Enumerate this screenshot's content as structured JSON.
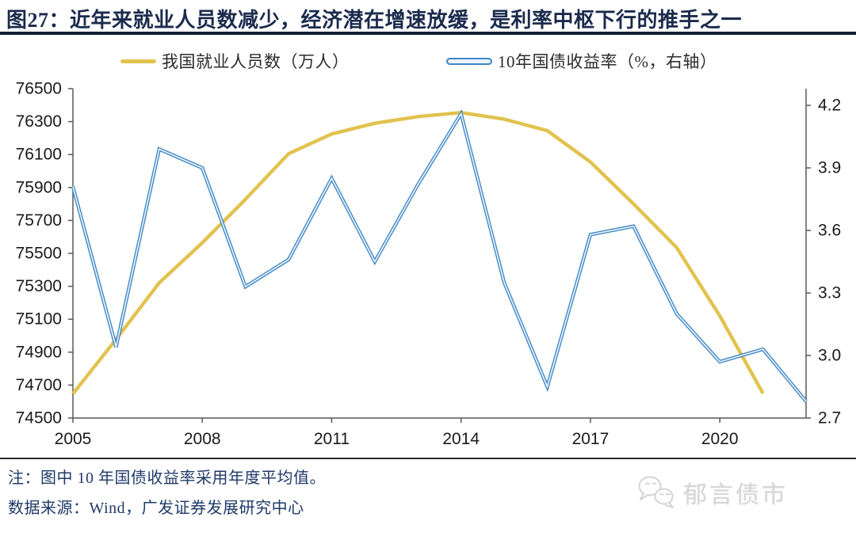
{
  "figure": {
    "title": "图27：近年来就业人员数减少，经济潜在增速放缓，是利率中枢下行的推手之一",
    "note": "注：图中 10 年国债收益率采用年度平均值。",
    "source": "数据来源：Wind，广发证券发展研究中心",
    "watermark": "郁言债市"
  },
  "legend": {
    "items": [
      {
        "label": "我国就业人员数（万人）",
        "color": "#e2c24e",
        "style": "solid"
      },
      {
        "label": "10年国债收益率（%，右轴）",
        "color": "#3f86c2",
        "style": "outlined"
      }
    ]
  },
  "colors": {
    "employment_line": "#e2c24e",
    "yield_line": "#3f86c2",
    "yield_line_core": "#eaf3fb",
    "title_text": "#1b2b4d",
    "title_rule": "#141e33",
    "note_text": "#1f3a68",
    "axis_line": "#595959",
    "axis_text": "#1a1a1a",
    "watermark": "#d8d8d8"
  },
  "chart_data": {
    "type": "line",
    "x": [
      2005,
      2006,
      2007,
      2008,
      2009,
      2010,
      2011,
      2012,
      2013,
      2014,
      2015,
      2016,
      2017,
      2018,
      2019,
      2020,
      2021,
      2022
    ],
    "x_tick_labels": [
      2005,
      2008,
      2011,
      2014,
      2017,
      2020
    ],
    "left_axis": {
      "min": 74500,
      "max": 76500,
      "ticks": [
        76500,
        76300,
        76100,
        75900,
        75700,
        75500,
        75300,
        75100,
        74900,
        74700,
        74500
      ]
    },
    "right_axis": {
      "min": 2.7,
      "max": 4.28,
      "ticks": [
        4.2,
        3.9,
        3.6,
        3.3,
        3.0,
        2.7
      ]
    },
    "series": [
      {
        "name": "我国就业人员数（万人）",
        "axis": "left",
        "color": "#e2c24e",
        "values": [
          74647,
          74978,
          75321,
          75564,
          75828,
          76105,
          76225,
          76290,
          76330,
          76355,
          76315,
          76245,
          76055,
          75800,
          75535,
          75120,
          74650,
          null
        ]
      },
      {
        "name": "10年国债收益率（%，右轴）",
        "axis": "right",
        "color": "#3f86c2",
        "core": "#eaf3fb",
        "values": [
          3.81,
          3.04,
          3.99,
          3.9,
          3.33,
          3.46,
          3.85,
          3.45,
          3.82,
          4.16,
          3.35,
          2.85,
          3.58,
          3.62,
          3.2,
          2.97,
          3.03,
          2.78
        ]
      }
    ],
    "grid": false,
    "legend_position": "top"
  }
}
